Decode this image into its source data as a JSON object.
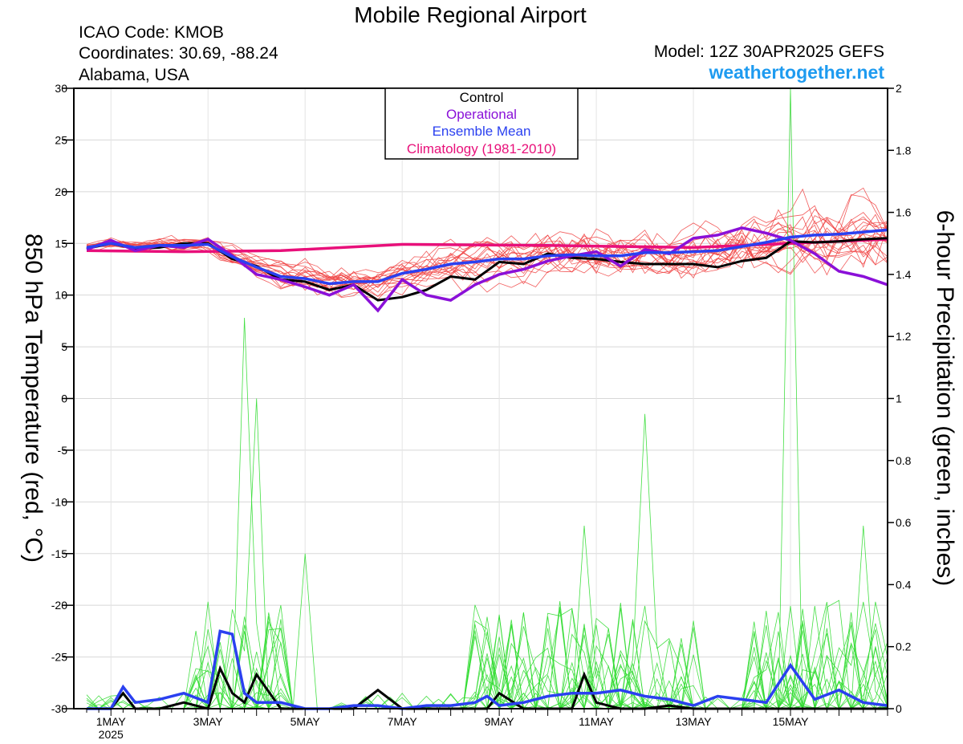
{
  "header": {
    "title": "Mobile Regional Airport",
    "icao": "ICAO Code: KMOB",
    "coordinates": "Coordinates: 30.69, -88.24",
    "location": "Alabama, USA",
    "model": "Model: 12Z 30APR2025 GEFS",
    "site": "weathertogether.net"
  },
  "chart_data": {
    "type": "line",
    "x_unit": "forecast hours from 12Z 30APR2025",
    "x_range": [
      0,
      396
    ],
    "x_ticks": [
      {
        "hour": 12,
        "label": "1MAY",
        "sublabel": "2025"
      },
      {
        "hour": 60,
        "label": "3MAY"
      },
      {
        "hour": 108,
        "label": "5MAY"
      },
      {
        "hour": 156,
        "label": "7MAY"
      },
      {
        "hour": 204,
        "label": "9MAY"
      },
      {
        "hour": 252,
        "label": "11MAY"
      },
      {
        "hour": 300,
        "label": "13MAY"
      },
      {
        "hour": 348,
        "label": "15MAY"
      }
    ],
    "left_axis": {
      "label": "850 hPa Temperature (red, °C)",
      "range": [
        -30,
        30
      ],
      "ticks": [
        -30,
        -25,
        -20,
        -15,
        -10,
        -5,
        0,
        5,
        10,
        15,
        20,
        25,
        30
      ]
    },
    "right_axis": {
      "label": "6-hour Precipitation (green, inches)",
      "range": [
        0,
        2
      ],
      "ticks": [
        "0",
        "0.2",
        "0.4",
        "0.6",
        "0.8",
        "1",
        "1.2",
        "1.4",
        "1.6",
        "1.8",
        "2"
      ]
    },
    "legend": {
      "placement": "top-center",
      "entries": [
        {
          "label": "Control",
          "color": "#000000"
        },
        {
          "label": "Operational",
          "color": "#8a10d8"
        },
        {
          "label": "Ensemble Mean",
          "color": "#2a40f0"
        },
        {
          "label": "Climatology (1981-2010)",
          "color": "#e8107a"
        }
      ]
    },
    "colors": {
      "members_temperature": "#f04040",
      "members_precipitation": "#30dc30",
      "control": "#000000",
      "operational": "#8a10d8",
      "ensemble_mean": "#2a40f0",
      "climatology": "#e8107a"
    },
    "temperature": {
      "control": {
        "hours": [
          0,
          12,
          24,
          36,
          48,
          60,
          72,
          84,
          96,
          108,
          120,
          132,
          144,
          156,
          168,
          180,
          192,
          204,
          216,
          228,
          240,
          252,
          264,
          276,
          288,
          300,
          312,
          324,
          336,
          348,
          360,
          372,
          384,
          396
        ],
        "values": [
          14.5,
          15.0,
          14.5,
          14.6,
          15.0,
          15.0,
          13.5,
          12.8,
          11.5,
          11.3,
          10.5,
          11.0,
          9.5,
          9.8,
          10.5,
          11.8,
          11.5,
          13.2,
          13.0,
          14.0,
          13.6,
          13.5,
          13.2,
          13.0,
          13.0,
          13.0,
          12.7,
          13.3,
          13.6,
          15.2,
          15.1,
          15.2,
          15.4,
          15.5
        ]
      },
      "operational": {
        "hours": [
          0,
          12,
          24,
          36,
          48,
          60,
          72,
          84,
          96,
          108,
          120,
          132,
          144,
          156,
          168,
          180,
          192,
          204,
          216,
          228,
          240,
          252,
          264,
          276,
          288,
          300,
          312,
          324,
          336,
          348,
          360,
          372,
          384,
          396
        ],
        "values": [
          14.4,
          15.3,
          14.3,
          14.8,
          14.6,
          15.4,
          13.8,
          12.0,
          11.5,
          10.8,
          10.0,
          11.0,
          8.5,
          11.5,
          10.0,
          9.5,
          11.0,
          12.0,
          12.5,
          13.3,
          13.8,
          14.2,
          12.8,
          14.4,
          14.0,
          15.5,
          15.8,
          16.5,
          16.0,
          15.3,
          14.0,
          12.3,
          11.8,
          11.0
        ]
      },
      "ensemble_mean": {
        "hours": [
          0,
          12,
          24,
          36,
          48,
          60,
          72,
          84,
          96,
          108,
          120,
          132,
          144,
          156,
          168,
          180,
          192,
          204,
          216,
          228,
          240,
          252,
          264,
          276,
          288,
          300,
          312,
          324,
          336,
          348,
          360,
          372,
          384,
          396
        ],
        "values": [
          14.6,
          15.0,
          14.6,
          14.8,
          14.8,
          14.9,
          13.7,
          12.7,
          11.8,
          11.6,
          11.1,
          11.3,
          11.3,
          12.1,
          12.5,
          13.0,
          13.2,
          13.5,
          13.5,
          13.8,
          13.9,
          13.8,
          13.8,
          14.1,
          14.1,
          14.2,
          14.3,
          14.7,
          15.1,
          15.6,
          15.8,
          15.9,
          16.1,
          16.3
        ]
      },
      "climatology": {
        "hours": [
          0,
          48,
          96,
          156,
          228,
          300,
          348,
          396
        ],
        "values": [
          14.3,
          14.2,
          14.3,
          14.9,
          14.8,
          14.6,
          15.0,
          15.4
        ]
      }
    },
    "precipitation": {
      "control": {
        "hours": [
          0,
          12,
          18,
          24,
          36,
          48,
          60,
          66,
          72,
          78,
          84,
          96,
          108,
          120,
          132,
          144,
          156,
          168,
          180,
          192,
          198,
          204,
          216,
          228,
          240,
          246,
          252,
          264,
          276,
          288,
          300,
          312,
          324,
          336,
          348,
          360,
          372,
          384,
          396
        ],
        "values": [
          0,
          0,
          0.05,
          0,
          0,
          0.02,
          0,
          0.13,
          0.05,
          0.02,
          0.11,
          0,
          0,
          0,
          0,
          0.06,
          0,
          0,
          0,
          0,
          0,
          0.05,
          0,
          0,
          0,
          0.11,
          0.02,
          0,
          0,
          0.01,
          0,
          0,
          0,
          0,
          0,
          0,
          0,
          0,
          0
        ]
      },
      "ensemble_mean": {
        "hours": [
          0,
          12,
          18,
          24,
          36,
          48,
          60,
          66,
          72,
          78,
          84,
          96,
          108,
          120,
          132,
          144,
          156,
          168,
          180,
          192,
          198,
          204,
          216,
          228,
          240,
          252,
          264,
          276,
          288,
          300,
          312,
          324,
          336,
          348,
          360,
          372,
          384,
          396
        ],
        "values": [
          0,
          0,
          0.07,
          0.02,
          0.03,
          0.05,
          0.02,
          0.25,
          0.24,
          0.05,
          0.02,
          0.02,
          0,
          0,
          0.01,
          0.01,
          0,
          0.01,
          0.01,
          0.02,
          0.04,
          0.01,
          0.02,
          0.04,
          0.05,
          0.05,
          0.06,
          0.04,
          0.03,
          0.01,
          0.04,
          0.03,
          0.02,
          0.14,
          0.03,
          0.06,
          0.02,
          0.01
        ]
      },
      "notable_member_peaks": [
        {
          "hour": 75,
          "value": 1.26
        },
        {
          "hour": 81,
          "value": 1.0
        },
        {
          "hour": 273,
          "value": 0.95
        },
        {
          "hour": 348,
          "value": 2.0
        },
        {
          "hour": 105,
          "value": 0.5
        },
        {
          "hour": 243,
          "value": 0.59
        },
        {
          "hour": 381,
          "value": 0.59
        }
      ]
    }
  }
}
